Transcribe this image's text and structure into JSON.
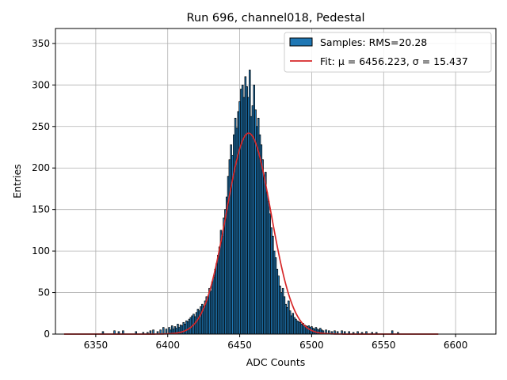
{
  "chart_data": {
    "type": "bar",
    "title": "Run 696, channel018, Pedestal",
    "xlabel": "ADC Counts",
    "ylabel": "Entries",
    "xlim": [
      6322,
      6628
    ],
    "ylim": [
      0,
      368
    ],
    "xticks": [
      6350,
      6400,
      6450,
      6500,
      6550,
      6600
    ],
    "yticks": [
      0,
      50,
      100,
      150,
      200,
      250,
      300,
      350
    ],
    "grid": true,
    "legend_position": "top-right",
    "colors": {
      "bar_fill": "#1f77b4",
      "bar_edge": "#000000",
      "fit_line": "#d62728",
      "grid": "#b0b0b0"
    },
    "legend": {
      "samples_label": "Samples: RMS=20.28",
      "fit_label": "Fit: μ = 6456.223, σ = 15.437"
    },
    "histogram": {
      "bin_width": 1,
      "x": [
        6355,
        6363,
        6366,
        6369,
        6378,
        6383,
        6386,
        6388,
        6390,
        6393,
        6395,
        6397,
        6399,
        6401,
        6402,
        6403,
        6404,
        6405,
        6406,
        6407,
        6408,
        6409,
        6410,
        6411,
        6412,
        6413,
        6414,
        6415,
        6416,
        6417,
        6418,
        6419,
        6420,
        6421,
        6422,
        6423,
        6424,
        6425,
        6426,
        6427,
        6428,
        6429,
        6430,
        6431,
        6432,
        6433,
        6434,
        6435,
        6436,
        6437,
        6438,
        6439,
        6440,
        6441,
        6442,
        6443,
        6444,
        6445,
        6446,
        6447,
        6448,
        6449,
        6450,
        6451,
        6452,
        6453,
        6454,
        6455,
        6456,
        6457,
        6458,
        6459,
        6460,
        6461,
        6462,
        6463,
        6464,
        6465,
        6466,
        6467,
        6468,
        6469,
        6470,
        6471,
        6472,
        6473,
        6474,
        6475,
        6476,
        6477,
        6478,
        6479,
        6480,
        6481,
        6482,
        6483,
        6484,
        6485,
        6486,
        6487,
        6488,
        6489,
        6490,
        6491,
        6492,
        6493,
        6494,
        6495,
        6496,
        6497,
        6498,
        6499,
        6500,
        6501,
        6502,
        6503,
        6504,
        6505,
        6506,
        6507,
        6508,
        6510,
        6512,
        6514,
        6516,
        6518,
        6521,
        6523,
        6526,
        6529,
        6532,
        6535,
        6538,
        6542,
        6545,
        6556,
        6560
      ],
      "counts": [
        3,
        4,
        3,
        4,
        3,
        2,
        2,
        4,
        5,
        3,
        5,
        8,
        6,
        8,
        5,
        10,
        6,
        9,
        7,
        12,
        8,
        11,
        10,
        14,
        12,
        16,
        15,
        18,
        20,
        22,
        24,
        21,
        26,
        30,
        28,
        33,
        36,
        34,
        40,
        45,
        44,
        55,
        52,
        63,
        68,
        78,
        85,
        95,
        105,
        125,
        118,
        140,
        150,
        165,
        190,
        210,
        228,
        215,
        240,
        260,
        248,
        268,
        280,
        295,
        300,
        285,
        310,
        298,
        285,
        318,
        262,
        275,
        300,
        270,
        250,
        260,
        240,
        228,
        210,
        190,
        195,
        170,
        160,
        145,
        128,
        118,
        100,
        92,
        78,
        70,
        58,
        50,
        55,
        45,
        36,
        32,
        40,
        28,
        22,
        25,
        20,
        18,
        16,
        15,
        14,
        12,
        13,
        11,
        10,
        9,
        10,
        8,
        9,
        7,
        6,
        8,
        6,
        5,
        7,
        5,
        4,
        5,
        4,
        3,
        4,
        3,
        4,
        3,
        3,
        2,
        3,
        2,
        3,
        2,
        2,
        4,
        2
      ]
    },
    "fit": {
      "mu": 6456.223,
      "sigma": 15.437,
      "amplitude": 242,
      "x_range": [
        6328,
        6588
      ]
    }
  }
}
